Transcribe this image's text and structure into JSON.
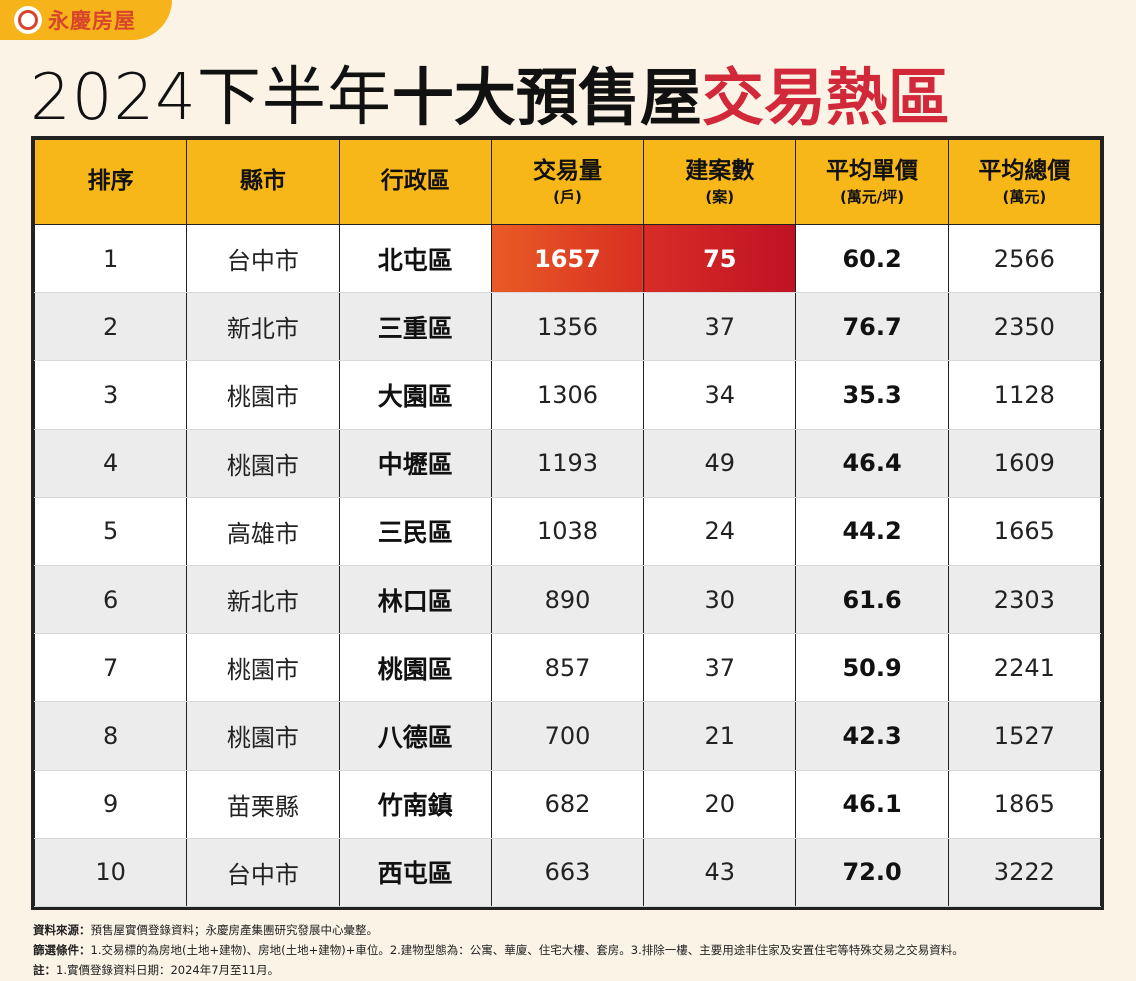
{
  "logo": {
    "text": "永慶房屋"
  },
  "title": {
    "year": "2024下半年",
    "bold": "十大預售屋",
    "red": "交易熱區"
  },
  "chart_data": {
    "type": "table",
    "columns": [
      {
        "label": "排序",
        "unit": ""
      },
      {
        "label": "縣市",
        "unit": ""
      },
      {
        "label": "行政區",
        "unit": ""
      },
      {
        "label": "交易量",
        "unit": "(戶)"
      },
      {
        "label": "建案數",
        "unit": "(案)"
      },
      {
        "label": "平均單價",
        "unit": "(萬元/坪)"
      },
      {
        "label": "平均總價",
        "unit": "(萬元)"
      }
    ],
    "rows": [
      [
        "1",
        "台中市",
        "北屯區",
        "1657",
        "75",
        "60.2",
        "2566"
      ],
      [
        "2",
        "新北市",
        "三重區",
        "1356",
        "37",
        "76.7",
        "2350"
      ],
      [
        "3",
        "桃園市",
        "大園區",
        "1306",
        "34",
        "35.3",
        "1128"
      ],
      [
        "4",
        "桃園市",
        "中壢區",
        "1193",
        "49",
        "46.4",
        "1609"
      ],
      [
        "5",
        "高雄市",
        "三民區",
        "1038",
        "24",
        "44.2",
        "1665"
      ],
      [
        "6",
        "新北市",
        "林口區",
        "890",
        "30",
        "61.6",
        "2303"
      ],
      [
        "7",
        "桃園市",
        "桃園區",
        "857",
        "37",
        "50.9",
        "2241"
      ],
      [
        "8",
        "桃園市",
        "八德區",
        "700",
        "21",
        "42.3",
        "1527"
      ],
      [
        "9",
        "苗栗縣",
        "竹南鎮",
        "682",
        "20",
        "46.1",
        "1865"
      ],
      [
        "10",
        "台中市",
        "西屯區",
        "663",
        "43",
        "72.0",
        "3222"
      ]
    ]
  },
  "notes": [
    {
      "label": "資料來源：",
      "text": "預售屋實價登錄資料；永慶房產集團研究發展中心彙整。"
    },
    {
      "label": "篩選條件：",
      "text": "1.交易標的為房地(土地+建物)、房地(土地+建物)+車位。2.建物型態為：公寓、華廈、住宅大樓、套房。3.排除一樓、主要用途非住家及安置住宅等特殊交易之交易資料。"
    },
    {
      "label": "註：",
      "text": "1.實價登錄資料日期：2024年7月至11月。"
    }
  ],
  "colors": {
    "header": "#f7b718",
    "accent_red": "#d1283a",
    "highlight": "#d82f22",
    "logo": "#d8452b"
  }
}
